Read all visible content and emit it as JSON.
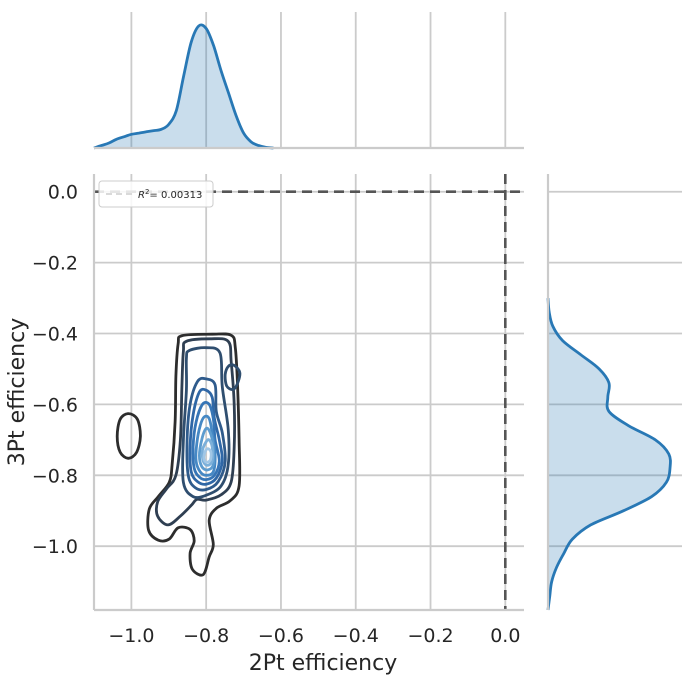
{
  "chart_data": {
    "type": "contour",
    "xlabel": "2Pt efficiency",
    "ylabel": "3Pt efficiency",
    "xlim": [
      -1.1,
      0.05
    ],
    "ylim": [
      -1.18,
      0.05
    ],
    "x_ticks": [
      -1.0,
      -0.8,
      -0.6,
      -0.4,
      -0.2,
      0.0
    ],
    "x_tick_labels": [
      "−1.0",
      "−0.8",
      "−0.6",
      "−0.4",
      "−0.2",
      "0.0"
    ],
    "y_ticks": [
      0.0,
      -0.2,
      -0.4,
      -0.6,
      -0.8,
      -1.0
    ],
    "y_tick_labels": [
      "0.0",
      "−0.2",
      "−0.4",
      "−0.6",
      "−0.8",
      "−1.0"
    ],
    "grid": true,
    "legend": {
      "placement": "top-left",
      "label_prefix": "R",
      "label_exponent": "2",
      "label_value": "= 0.00313"
    },
    "reference_lines": [
      {
        "orientation": "vertical",
        "value": 0.0,
        "style": "dashed"
      },
      {
        "orientation": "horizontal",
        "value": 0.0,
        "style": "dashed"
      }
    ],
    "contour_colors": [
      "#2d2d2d",
      "#2f3f52",
      "#2f4e6f",
      "#2f5b8c",
      "#2f67a6",
      "#3675b6",
      "#4688c4",
      "#5d9ccf",
      "#7cb0da",
      "#a1c7e6"
    ],
    "contours": [
      {
        "level": 1,
        "points": [
          [
            -0.864,
            -0.406
          ],
          [
            -0.784,
            -0.402
          ],
          [
            -0.733,
            -0.405
          ],
          [
            -0.722,
            -0.44
          ],
          [
            -0.716,
            -0.55
          ],
          [
            -0.712,
            -0.7
          ],
          [
            -0.712,
            -0.83
          ],
          [
            -0.736,
            -0.872
          ],
          [
            -0.773,
            -0.893
          ],
          [
            -0.792,
            -0.927
          ],
          [
            -0.781,
            -0.995
          ],
          [
            -0.792,
            -1.03
          ],
          [
            -0.808,
            -1.08
          ],
          [
            -0.837,
            -1.065
          ],
          [
            -0.843,
            -1.02
          ],
          [
            -0.832,
            -0.985
          ],
          [
            -0.843,
            -0.953
          ],
          [
            -0.875,
            -0.948
          ],
          [
            -0.899,
            -0.98
          ],
          [
            -0.928,
            -0.983
          ],
          [
            -0.954,
            -0.955
          ],
          [
            -0.952,
            -0.895
          ],
          [
            -0.928,
            -0.86
          ],
          [
            -0.899,
            -0.82
          ],
          [
            -0.891,
            -0.77
          ],
          [
            -0.883,
            -0.65
          ],
          [
            -0.881,
            -0.52
          ],
          [
            -0.875,
            -0.43
          ]
        ]
      },
      {
        "level": 1,
        "points": [
          [
            -1.008,
            -0.626
          ],
          [
            -0.984,
            -0.642
          ],
          [
            -0.976,
            -0.69
          ],
          [
            -0.986,
            -0.735
          ],
          [
            -1.008,
            -0.752
          ],
          [
            -1.03,
            -0.735
          ],
          [
            -1.038,
            -0.69
          ],
          [
            -1.03,
            -0.642
          ]
        ]
      },
      {
        "level": 2,
        "points": [
          [
            -0.853,
            -0.422
          ],
          [
            -0.79,
            -0.415
          ],
          [
            -0.741,
            -0.422
          ],
          [
            -0.733,
            -0.48
          ],
          [
            -0.725,
            -0.6
          ],
          [
            -0.725,
            -0.72
          ],
          [
            -0.733,
            -0.818
          ],
          [
            -0.76,
            -0.855
          ],
          [
            -0.8,
            -0.87
          ],
          [
            -0.825,
            -0.868
          ],
          [
            -0.84,
            -0.885
          ],
          [
            -0.869,
            -0.915
          ],
          [
            -0.902,
            -0.94
          ],
          [
            -0.93,
            -0.915
          ],
          [
            -0.93,
            -0.875
          ],
          [
            -0.906,
            -0.838
          ],
          [
            -0.881,
            -0.8
          ],
          [
            -0.869,
            -0.7
          ],
          [
            -0.865,
            -0.55
          ],
          [
            -0.861,
            -0.45
          ]
        ]
      },
      {
        "level": 3,
        "points": [
          [
            -0.845,
            -0.448
          ],
          [
            -0.8,
            -0.44
          ],
          [
            -0.763,
            -0.455
          ],
          [
            -0.757,
            -0.55
          ],
          [
            -0.741,
            -0.67
          ],
          [
            -0.741,
            -0.77
          ],
          [
            -0.76,
            -0.83
          ],
          [
            -0.8,
            -0.856
          ],
          [
            -0.835,
            -0.86
          ],
          [
            -0.861,
            -0.82
          ],
          [
            -0.861,
            -0.7
          ],
          [
            -0.853,
            -0.56
          ],
          [
            -0.853,
            -0.47
          ]
        ]
      },
      {
        "level": 3,
        "points": [
          [
            -0.725,
            -0.49
          ],
          [
            -0.71,
            -0.51
          ],
          [
            -0.716,
            -0.54
          ],
          [
            -0.728,
            -0.558
          ],
          [
            -0.745,
            -0.548
          ],
          [
            -0.749,
            -0.515
          ],
          [
            -0.74,
            -0.492
          ]
        ]
      },
      {
        "level": 4,
        "points": [
          [
            -0.823,
            -0.535
          ],
          [
            -0.8,
            -0.528
          ],
          [
            -0.776,
            -0.545
          ],
          [
            -0.773,
            -0.62
          ],
          [
            -0.757,
            -0.68
          ],
          [
            -0.749,
            -0.76
          ],
          [
            -0.768,
            -0.818
          ],
          [
            -0.8,
            -0.84
          ],
          [
            -0.829,
            -0.835
          ],
          [
            -0.848,
            -0.8
          ],
          [
            -0.851,
            -0.7
          ],
          [
            -0.843,
            -0.6
          ]
        ]
      },
      {
        "level": 5,
        "points": [
          [
            -0.818,
            -0.565
          ],
          [
            -0.8,
            -0.56
          ],
          [
            -0.784,
            -0.58
          ],
          [
            -0.778,
            -0.64
          ],
          [
            -0.765,
            -0.7
          ],
          [
            -0.757,
            -0.76
          ],
          [
            -0.773,
            -0.808
          ],
          [
            -0.8,
            -0.825
          ],
          [
            -0.823,
            -0.818
          ],
          [
            -0.84,
            -0.79
          ],
          [
            -0.843,
            -0.72
          ],
          [
            -0.835,
            -0.63
          ]
        ]
      },
      {
        "level": 6,
        "points": [
          [
            -0.81,
            -0.6
          ],
          [
            -0.792,
            -0.6
          ],
          [
            -0.781,
            -0.64
          ],
          [
            -0.776,
            -0.7
          ],
          [
            -0.765,
            -0.76
          ],
          [
            -0.778,
            -0.8
          ],
          [
            -0.8,
            -0.812
          ],
          [
            -0.818,
            -0.805
          ],
          [
            -0.832,
            -0.78
          ],
          [
            -0.835,
            -0.72
          ],
          [
            -0.827,
            -0.65
          ]
        ]
      },
      {
        "level": 7,
        "points": [
          [
            -0.805,
            -0.635
          ],
          [
            -0.792,
            -0.64
          ],
          [
            -0.784,
            -0.68
          ],
          [
            -0.776,
            -0.74
          ],
          [
            -0.781,
            -0.79
          ],
          [
            -0.8,
            -0.8
          ],
          [
            -0.816,
            -0.79
          ],
          [
            -0.827,
            -0.76
          ],
          [
            -0.825,
            -0.71
          ],
          [
            -0.816,
            -0.66
          ]
        ]
      },
      {
        "level": 8,
        "points": [
          [
            -0.8,
            -0.668
          ],
          [
            -0.789,
            -0.68
          ],
          [
            -0.781,
            -0.72
          ],
          [
            -0.781,
            -0.77
          ],
          [
            -0.797,
            -0.785
          ],
          [
            -0.812,
            -0.775
          ],
          [
            -0.818,
            -0.745
          ],
          [
            -0.812,
            -0.7
          ]
        ]
      },
      {
        "level": 9,
        "points": [
          [
            -0.792,
            -0.7
          ],
          [
            -0.784,
            -0.72
          ],
          [
            -0.784,
            -0.76
          ],
          [
            -0.797,
            -0.772
          ],
          [
            -0.808,
            -0.76
          ],
          [
            -0.81,
            -0.73
          ],
          [
            -0.8,
            -0.705
          ]
        ]
      },
      {
        "level": 10,
        "points": [
          [
            -0.795,
            -0.725
          ],
          [
            -0.787,
            -0.735
          ],
          [
            -0.789,
            -0.757
          ],
          [
            -0.8,
            -0.763
          ],
          [
            -0.806,
            -0.752
          ],
          [
            -0.803,
            -0.733
          ]
        ]
      }
    ],
    "marginal_color": "#2878b5",
    "marginal_x": {
      "x": [
        -1.1,
        -1.08,
        -1.06,
        -1.04,
        -1.02,
        -1.0,
        -0.98,
        -0.96,
        -0.94,
        -0.92,
        -0.9,
        -0.88,
        -0.86,
        -0.84,
        -0.82,
        -0.8,
        -0.78,
        -0.76,
        -0.74,
        -0.72,
        -0.7,
        -0.68,
        -0.66,
        -0.64,
        -0.62
      ],
      "density": [
        0.0,
        0.02,
        0.04,
        0.07,
        0.09,
        0.11,
        0.12,
        0.13,
        0.14,
        0.15,
        0.19,
        0.3,
        0.58,
        0.85,
        0.98,
        0.96,
        0.82,
        0.62,
        0.44,
        0.26,
        0.12,
        0.05,
        0.02,
        0.005,
        0.0
      ]
    },
    "marginal_y": {
      "y": [
        -1.18,
        -1.14,
        -1.1,
        -1.06,
        -1.02,
        -0.98,
        -0.94,
        -0.9,
        -0.86,
        -0.82,
        -0.78,
        -0.74,
        -0.7,
        -0.66,
        -0.62,
        -0.58,
        -0.54,
        -0.5,
        -0.46,
        -0.42,
        -0.38,
        -0.34,
        -0.3
      ],
      "density": [
        0.0,
        0.015,
        0.03,
        0.07,
        0.13,
        0.2,
        0.35,
        0.62,
        0.85,
        0.97,
        1.0,
        0.99,
        0.88,
        0.66,
        0.5,
        0.49,
        0.5,
        0.42,
        0.27,
        0.12,
        0.04,
        0.01,
        0.0
      ]
    }
  }
}
